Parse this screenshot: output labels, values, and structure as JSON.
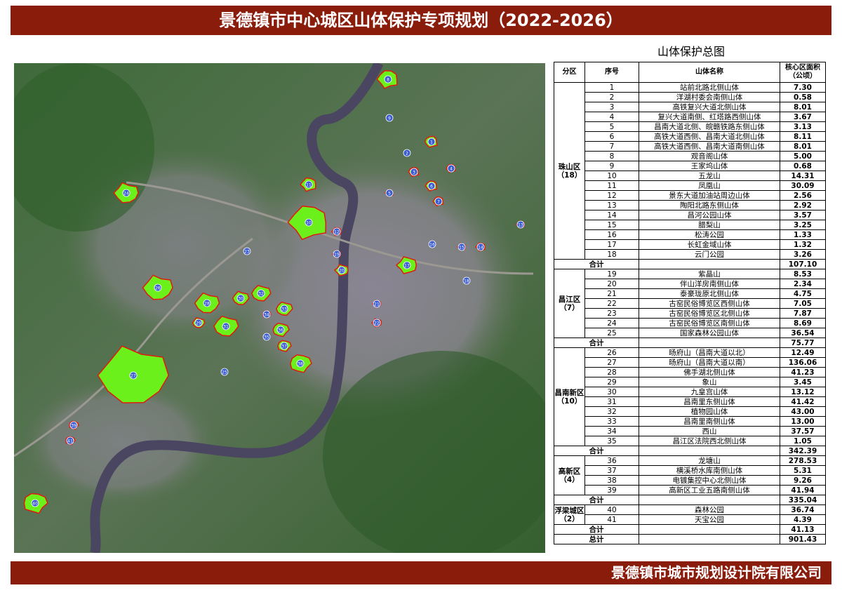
{
  "header": {
    "title": "景德镇市中心城区山体保护专项规划（2022-2026）"
  },
  "map_title": "山体保护总图",
  "table": {
    "columns": [
      "分区",
      "序号",
      "山体名称",
      "核心区面积",
      "（公顷）"
    ],
    "groups": [
      {
        "name": "珠山区",
        "count": "（18）",
        "rows": [
          [
            1,
            "站前北路北侧山体",
            "7.30"
          ],
          [
            2,
            "洋湖村委会南侧山体",
            "0.58"
          ],
          [
            3,
            "高铁复兴大道北侧山体",
            "8.01"
          ],
          [
            4,
            "复兴大道南侧、红塔路西侧山体",
            "3.67"
          ],
          [
            5,
            "昌南大道北侧、皖赣铁路东侧山体",
            "3.13"
          ],
          [
            6,
            "高铁大道西侧、昌南大道北侧山体",
            "8.11"
          ],
          [
            7,
            "高铁大道西侧、昌南大道南侧山体",
            "8.01"
          ],
          [
            8,
            "观音阁山体",
            "5.00"
          ],
          [
            9,
            "王家坞山体",
            "0.68"
          ],
          [
            10,
            "五龙山",
            "14.31"
          ],
          [
            11,
            "凤凰山",
            "30.09"
          ],
          [
            12,
            "景东大道加油站周边山体",
            "2.56"
          ],
          [
            13,
            "陶阳北路东侧山体",
            "2.92"
          ],
          [
            14,
            "昌河公园山体",
            "3.57"
          ],
          [
            15,
            "腊梨山",
            "3.25"
          ],
          [
            16,
            "松涛公园",
            "1.33"
          ],
          [
            17,
            "长虹金域山体",
            "1.32"
          ],
          [
            18,
            "云门公园",
            "3.26"
          ]
        ],
        "subtotal_label": "合计",
        "subtotal": "107.10"
      },
      {
        "name": "昌江区",
        "count": "（7）",
        "rows": [
          [
            19,
            "紫晶山",
            "8.53"
          ],
          [
            20,
            "伴山洋房南侧山体",
            "2.34"
          ],
          [
            21,
            "泰豪珑原北侧山体",
            "4.75"
          ],
          [
            22,
            "古窑民俗博览区西侧山体",
            "7.05"
          ],
          [
            23,
            "古窑民俗博览区北侧山体",
            "7.87"
          ],
          [
            24,
            "古窑民俗博览区南侧山体",
            "8.69"
          ],
          [
            25,
            "国家森林公园山体",
            "36.54"
          ]
        ],
        "subtotal_label": "合计",
        "subtotal": "75.77"
      },
      {
        "name": "昌南新区",
        "count": "（10）",
        "rows": [
          [
            26,
            "旸府山（昌南大道以北）",
            "12.49"
          ],
          [
            27,
            "旸府山（昌南大道以南）",
            "136.06"
          ],
          [
            28,
            "佛手湖北侧山体",
            "41.23"
          ],
          [
            29,
            "象山",
            "3.45"
          ],
          [
            30,
            "九皇宫山体",
            "13.12"
          ],
          [
            31,
            "昌南里东侧山体",
            "41.42"
          ],
          [
            32,
            "植物园山体",
            "43.00"
          ],
          [
            33,
            "昌南里南侧山体",
            "13.00"
          ],
          [
            34,
            "西山",
            "37.57"
          ],
          [
            35,
            "昌江区法院西北侧山体",
            "1.05"
          ]
        ],
        "subtotal_label": "合计",
        "subtotal": "342.39"
      },
      {
        "name": "高新区",
        "count": "（4）",
        "rows": [
          [
            36,
            "龙塘山",
            "278.53"
          ],
          [
            37,
            "横溪桥水库南侧山体",
            "5.31"
          ],
          [
            38,
            "电镀集控中心北侧山体",
            "9.26"
          ],
          [
            39,
            "高新区工业五路南侧山体",
            "41.94"
          ]
        ],
        "subtotal_label": "合计",
        "subtotal": "335.04"
      },
      {
        "name": "浮梁城区",
        "count": "（2）",
        "rows": [
          [
            40,
            "森林公园",
            "36.74"
          ],
          [
            41,
            "天宝公园",
            "4.39"
          ]
        ],
        "subtotal_label": "合计",
        "subtotal": "41.13"
      }
    ],
    "total_label": "总计",
    "total": "901.43"
  },
  "footer": "景德镇市城市规划设计院有限公司"
}
